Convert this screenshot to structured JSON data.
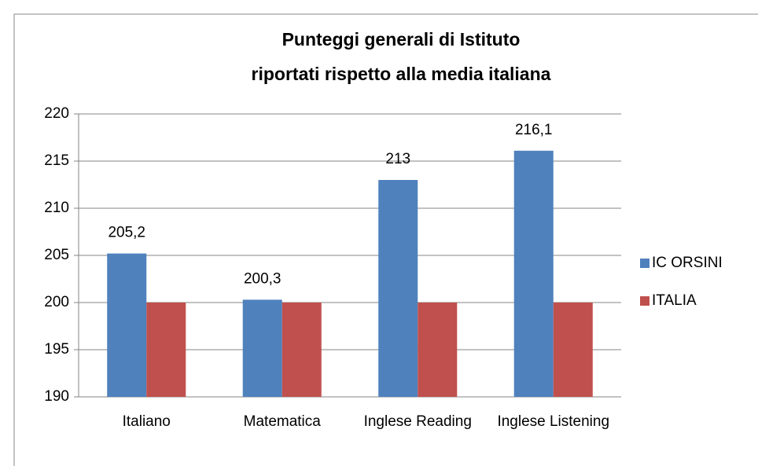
{
  "chart_data": {
    "type": "bar",
    "title": [
      "Punteggi generali di Istituto",
      "riportati rispetto alla media italiana"
    ],
    "categories": [
      "Italiano",
      "Matematica",
      "Inglese Reading",
      "Inglese Listening"
    ],
    "series": [
      {
        "name": "IC ORSINI",
        "color": "#4f81bd",
        "values": [
          205.2,
          200.3,
          213,
          216.1
        ],
        "value_labels": [
          "205,2",
          "200,3",
          "213",
          "216,1"
        ]
      },
      {
        "name": "ITALIA",
        "color": "#c0504d",
        "values": [
          200,
          200,
          200,
          200
        ]
      }
    ],
    "ylim": [
      190,
      220
    ],
    "yticks": [
      190,
      195,
      200,
      205,
      210,
      215,
      220
    ],
    "grid": true,
    "legend": "right"
  }
}
